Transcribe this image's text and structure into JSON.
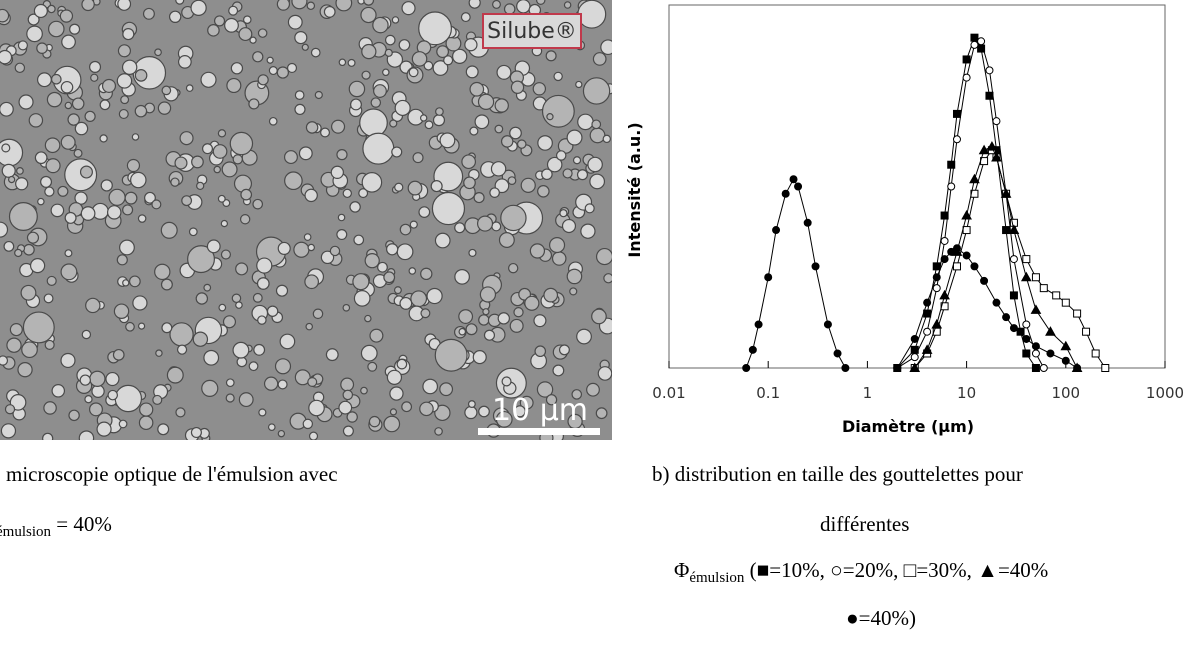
{
  "micrograph": {
    "label": "Silube®",
    "scale_bar": "10 µm"
  },
  "caption_a": {
    "line1": "microscopie optique de l'émulsion avec",
    "subscript": "émulsion",
    "equation": "= 40%"
  },
  "caption_b": {
    "line1": "b) distribution en taille des gouttelettes pour",
    "line2": "différentes",
    "symbol": "Φ",
    "subscript": "émulsion",
    "line3": "(■=10%, ○=20%, □=30%, ▲=40%",
    "line4": "●=40%)"
  },
  "chart_data": {
    "type": "line",
    "x_label": "Diamètre (µm)",
    "y_label": "Intensité (a.u.)",
    "xscale": "log",
    "xlim": [
      0.01,
      1000
    ],
    "ylim": [
      0,
      100
    ],
    "xticks": [
      0.01,
      0.1,
      1,
      10,
      100,
      1000
    ],
    "series": [
      {
        "marker": "square-filled",
        "color": "#000000",
        "x": [
          2,
          3,
          4,
          5,
          6,
          7,
          8,
          10,
          12,
          14,
          17,
          20,
          25,
          30,
          35,
          40,
          50
        ],
        "values": [
          0,
          5,
          15,
          28,
          42,
          56,
          70,
          85,
          91,
          88,
          75,
          60,
          38,
          20,
          10,
          4,
          0
        ]
      },
      {
        "marker": "circle-open",
        "color": "#000000",
        "x": [
          2,
          3,
          4,
          5,
          6,
          7,
          8,
          10,
          12,
          14,
          17,
          20,
          25,
          30,
          40,
          50,
          60
        ],
        "values": [
          0,
          3,
          10,
          22,
          35,
          50,
          63,
          80,
          89,
          90,
          82,
          68,
          48,
          30,
          12,
          4,
          0
        ]
      },
      {
        "marker": "square-open",
        "color": "#000000",
        "x": [
          3,
          4,
          5,
          6,
          8,
          10,
          12,
          15,
          18,
          20,
          25,
          30,
          40,
          50,
          60,
          80,
          100,
          130,
          160,
          200,
          250
        ],
        "values": [
          0,
          4,
          10,
          17,
          28,
          38,
          48,
          57,
          60,
          58,
          48,
          40,
          30,
          25,
          22,
          20,
          18,
          15,
          10,
          4,
          0
        ]
      },
      {
        "marker": "triangle-filled",
        "color": "#000000",
        "x": [
          3,
          4,
          5,
          6,
          8,
          10,
          12,
          15,
          18,
          20,
          25,
          30,
          40,
          50,
          70,
          100,
          130
        ],
        "values": [
          0,
          5,
          12,
          20,
          32,
          42,
          52,
          60,
          61,
          58,
          48,
          38,
          25,
          16,
          10,
          6,
          0
        ]
      },
      {
        "marker": "circle-filled",
        "color": "#000000",
        "x": [
          0.06,
          0.07,
          0.08,
          0.1,
          0.12,
          0.15,
          0.18,
          0.2,
          0.25,
          0.3,
          0.4,
          0.5,
          0.6,
          1,
          2,
          3,
          4,
          5,
          6,
          7,
          8,
          10,
          12,
          15,
          20,
          25,
          30,
          40,
          50,
          70,
          100,
          130
        ],
        "values": [
          0,
          5,
          12,
          25,
          38,
          48,
          52,
          50,
          40,
          28,
          12,
          4,
          0,
          null,
          0,
          8,
          18,
          25,
          30,
          32,
          33,
          31,
          28,
          24,
          18,
          14,
          11,
          8,
          6,
          4,
          2,
          0
        ]
      }
    ]
  }
}
